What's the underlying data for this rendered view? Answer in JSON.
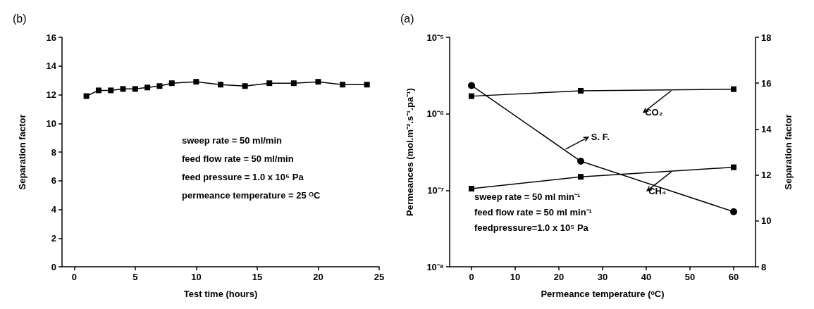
{
  "chart_data": [
    {
      "type": "line",
      "title": "(b)",
      "xlabel": "Test time (hours)",
      "ylabel": "Separation factor",
      "marker": "square",
      "x": [
        1,
        2,
        3,
        4,
        5,
        6,
        7,
        8,
        10,
        12,
        14,
        16,
        18,
        20,
        22,
        24
      ],
      "values": [
        11.9,
        12.3,
        12.3,
        12.4,
        12.4,
        12.5,
        12.6,
        12.8,
        12.9,
        12.7,
        12.6,
        12.8,
        12.8,
        12.9,
        12.7,
        12.7
      ],
      "color": "#000000",
      "xlim": [
        -1,
        25
      ],
      "xticks": [
        0,
        5,
        10,
        15,
        20,
        25
      ],
      "ylim": [
        0,
        16
      ],
      "yticks": [
        0,
        2,
        4,
        6,
        8,
        10,
        12,
        14,
        16
      ],
      "annotations": [
        "sweep rate = 50 ml/min",
        "feed flow rate = 50 ml/min",
        "feed pressure = 1.0 x 10⁵ Pa",
        "permeance temperature = 25 ᴼC"
      ]
    },
    {
      "type": "line",
      "title": "(a)",
      "xlabel": "Permeance temperature (ᵒC)",
      "ylabel": "Permeances (mol.m⁻².s⁻¹.pa⁻¹)",
      "y2label": "Separation factor",
      "log": "y",
      "x": [
        0,
        25,
        60
      ],
      "series": [
        {
          "name": "CO₂",
          "color": "#000000",
          "marker": "square",
          "values": [
            1.7e-06,
            2e-06,
            2.1e-06
          ]
        },
        {
          "name": "S. F.",
          "color": "#000000",
          "marker": "circle",
          "axis": "y2",
          "values": [
            15.9,
            12.6,
            10.4
          ]
        },
        {
          "name": "CH₄",
          "color": "#000000",
          "marker": "square",
          "values": [
            1.05e-07,
            1.5e-07,
            2e-07
          ]
        }
      ],
      "xlim": [
        -5,
        65
      ],
      "xticks": [
        0,
        10,
        20,
        30,
        40,
        50,
        60
      ],
      "ylim": [
        1e-08,
        1e-05
      ],
      "yticks": [
        {
          "value": 1e-08,
          "label": "10⁻⁸"
        },
        {
          "value": 1e-07,
          "label": "10⁻⁷"
        },
        {
          "value": 1e-06,
          "label": "10⁻⁶"
        },
        {
          "value": 1e-05,
          "label": "10⁻⁵"
        }
      ],
      "y2lim": [
        8,
        18
      ],
      "y2ticks": [
        8,
        10,
        12,
        14,
        16,
        18
      ],
      "annotations": [
        "sweep rate = 50 ml min⁻¹",
        "feed flow rate = 50 ml min⁻¹",
        "feedpressure=1.0 x 10⁵ Pa"
      ]
    }
  ]
}
